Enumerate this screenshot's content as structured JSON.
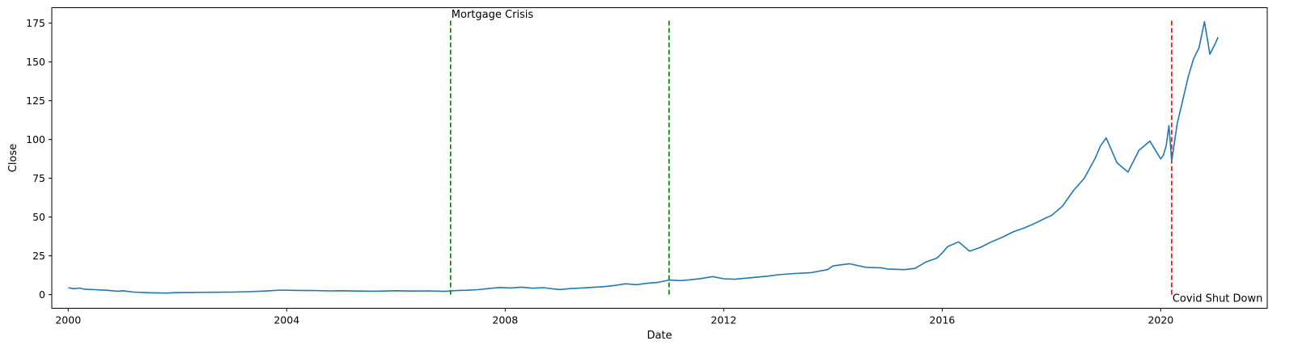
{
  "chart_data": {
    "type": "line",
    "title": "",
    "xlabel": "Date",
    "ylabel": "Close",
    "xlim": [
      1999.7,
      2021.95
    ],
    "ylim": [
      -8.8,
      185
    ],
    "grid": false,
    "legend": "none",
    "x_ticks": [
      {
        "value": 2000,
        "label": "2000"
      },
      {
        "value": 2004,
        "label": "2004"
      },
      {
        "value": 2008,
        "label": "2008"
      },
      {
        "value": 2012,
        "label": "2012"
      },
      {
        "value": 2016,
        "label": "2016"
      },
      {
        "value": 2020,
        "label": "2020"
      }
    ],
    "y_ticks": [
      {
        "value": 0,
        "label": "0"
      },
      {
        "value": 25,
        "label": "25"
      },
      {
        "value": 50,
        "label": "50"
      },
      {
        "value": 75,
        "label": "75"
      },
      {
        "value": 100,
        "label": "100"
      },
      {
        "value": 125,
        "label": "125"
      },
      {
        "value": 150,
        "label": "150"
      },
      {
        "value": 175,
        "label": "175"
      }
    ],
    "series": [
      {
        "color": "#1f77b4",
        "x": [
          2000.0,
          2000.1,
          2000.2,
          2000.3,
          2000.5,
          2000.7,
          2000.9,
          2001.0,
          2001.2,
          2001.5,
          2001.8,
          2002.0,
          2002.3,
          2002.6,
          2003.0,
          2003.3,
          2003.6,
          2003.9,
          2004.2,
          2004.5,
          2004.8,
          2005.0,
          2005.3,
          2005.6,
          2006.0,
          2006.3,
          2006.6,
          2006.9,
          2007.1,
          2007.3,
          2007.5,
          2007.7,
          2007.9,
          2008.1,
          2008.3,
          2008.5,
          2008.7,
          2008.9,
          2009.0,
          2009.2,
          2009.4,
          2009.6,
          2009.8,
          2010.0,
          2010.2,
          2010.4,
          2010.6,
          2010.8,
          2011.0,
          2011.2,
          2011.4,
          2011.6,
          2011.8,
          2012.0,
          2012.2,
          2012.4,
          2012.6,
          2012.8,
          2013.0,
          2013.3,
          2013.6,
          2013.9,
          2014.0,
          2014.3,
          2014.6,
          2014.9,
          2015.0,
          2015.3,
          2015.5,
          2015.7,
          2015.9,
          2016.0,
          2016.1,
          2016.3,
          2016.5,
          2016.7,
          2016.9,
          2017.1,
          2017.3,
          2017.5,
          2017.7,
          2017.9,
          2018.0,
          2018.2,
          2018.4,
          2018.6,
          2018.8,
          2018.9,
          2019.0,
          2019.2,
          2019.4,
          2019.6,
          2019.8,
          2020.0,
          2020.05,
          2020.1,
          2020.15,
          2020.2,
          2020.3,
          2020.4,
          2020.5,
          2020.6,
          2020.7,
          2020.8,
          2020.9,
          2021.0,
          2021.05
        ],
        "y": [
          4.5,
          3.8,
          4.2,
          3.5,
          3.2,
          2.8,
          2.2,
          2.5,
          1.6,
          1.2,
          1.0,
          1.3,
          1.4,
          1.5,
          1.6,
          1.9,
          2.3,
          2.9,
          2.7,
          2.6,
          2.4,
          2.5,
          2.3,
          2.2,
          2.5,
          2.3,
          2.4,
          2.1,
          2.6,
          2.8,
          3.2,
          3.9,
          4.6,
          4.3,
          4.8,
          4.1,
          4.5,
          3.6,
          3.3,
          3.9,
          4.3,
          4.7,
          5.1,
          5.9,
          7.0,
          6.4,
          7.3,
          7.9,
          9.4,
          9.0,
          9.6,
          10.4,
          11.6,
          10.2,
          9.9,
          10.6,
          11.2,
          11.9,
          12.8,
          13.6,
          14.2,
          16.1,
          18.5,
          19.9,
          17.6,
          17.2,
          16.5,
          16.1,
          16.9,
          21.0,
          23.5,
          26.8,
          31.0,
          34.0,
          28.0,
          30.5,
          34.0,
          37.0,
          40.5,
          43.0,
          46.0,
          49.5,
          51.0,
          57.0,
          67.0,
          75.0,
          88.0,
          96.0,
          101.0,
          85.0,
          79.0,
          93.0,
          99.0,
          87.5,
          90.0,
          96.0,
          109.0,
          86.0,
          110.0,
          125.0,
          140.0,
          152.0,
          159.0,
          176.0,
          155.0,
          162.0,
          166.0
        ]
      }
    ],
    "vlines": [
      {
        "x": 2007.0,
        "color": "#008000",
        "ymin": 0,
        "ymax": 177
      },
      {
        "x": 2011.0,
        "color": "#008000",
        "ymin": 0,
        "ymax": 177
      },
      {
        "x": 2020.2,
        "color": "#ff0000",
        "ymin": 0,
        "ymax": 177
      }
    ],
    "annotations": [
      {
        "text": "Mortgage Crisis",
        "x": 2007.0,
        "y": 177,
        "anchor": "bottom-left"
      },
      {
        "text": "Covid Shut Down",
        "x": 2020.2,
        "y": 0,
        "anchor": "top-left"
      }
    ]
  }
}
